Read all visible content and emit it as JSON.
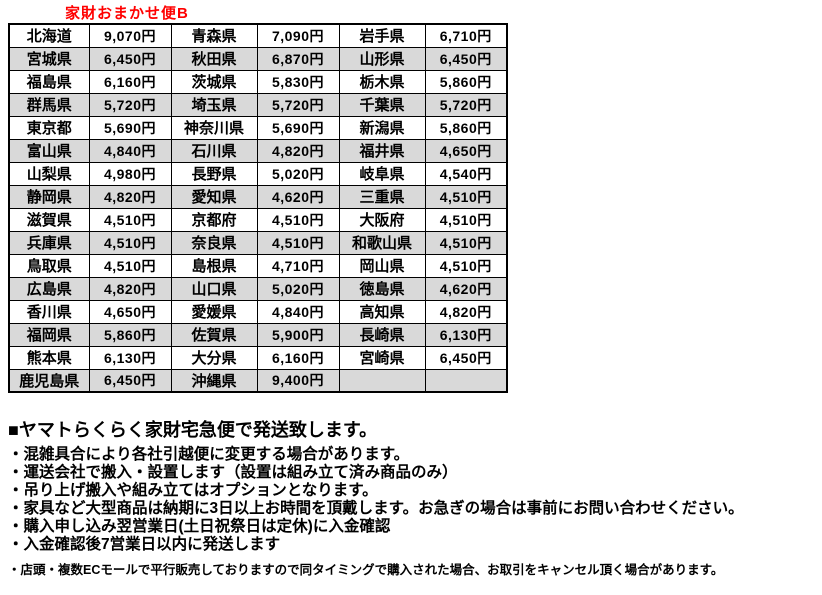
{
  "title": "家財おまかせ便B",
  "colors": {
    "title_red": "#ff0000",
    "row_alt_gray": "#d9d9d9",
    "border_black": "#000000"
  },
  "table": {
    "rows": [
      [
        {
          "pref": "北海道",
          "price": "9,070円"
        },
        {
          "pref": "青森県",
          "price": "7,090円"
        },
        {
          "pref": "岩手県",
          "price": "6,710円"
        }
      ],
      [
        {
          "pref": "宮城県",
          "price": "6,450円"
        },
        {
          "pref": "秋田県",
          "price": "6,870円"
        },
        {
          "pref": "山形県",
          "price": "6,450円"
        }
      ],
      [
        {
          "pref": "福島県",
          "price": "6,160円"
        },
        {
          "pref": "茨城県",
          "price": "5,830円"
        },
        {
          "pref": "栃木県",
          "price": "5,860円"
        }
      ],
      [
        {
          "pref": "群馬県",
          "price": "5,720円"
        },
        {
          "pref": "埼玉県",
          "price": "5,720円"
        },
        {
          "pref": "千葉県",
          "price": "5,720円"
        }
      ],
      [
        {
          "pref": "東京都",
          "price": "5,690円"
        },
        {
          "pref": "神奈川県",
          "price": "5,690円"
        },
        {
          "pref": "新潟県",
          "price": "5,860円"
        }
      ],
      [
        {
          "pref": "富山県",
          "price": "4,840円"
        },
        {
          "pref": "石川県",
          "price": "4,820円"
        },
        {
          "pref": "福井県",
          "price": "4,650円"
        }
      ],
      [
        {
          "pref": "山梨県",
          "price": "4,980円"
        },
        {
          "pref": "長野県",
          "price": "5,020円"
        },
        {
          "pref": "岐阜県",
          "price": "4,540円"
        }
      ],
      [
        {
          "pref": "静岡県",
          "price": "4,820円"
        },
        {
          "pref": "愛知県",
          "price": "4,620円"
        },
        {
          "pref": "三重県",
          "price": "4,510円"
        }
      ],
      [
        {
          "pref": "滋賀県",
          "price": "4,510円"
        },
        {
          "pref": "京都府",
          "price": "4,510円"
        },
        {
          "pref": "大阪府",
          "price": "4,510円"
        }
      ],
      [
        {
          "pref": "兵庫県",
          "price": "4,510円"
        },
        {
          "pref": "奈良県",
          "price": "4,510円"
        },
        {
          "pref": "和歌山県",
          "price": "4,510円"
        }
      ],
      [
        {
          "pref": "鳥取県",
          "price": "4,510円"
        },
        {
          "pref": "島根県",
          "price": "4,710円"
        },
        {
          "pref": "岡山県",
          "price": "4,510円"
        }
      ],
      [
        {
          "pref": "広島県",
          "price": "4,820円"
        },
        {
          "pref": "山口県",
          "price": "5,020円"
        },
        {
          "pref": "徳島県",
          "price": "4,620円"
        }
      ],
      [
        {
          "pref": "香川県",
          "price": "4,650円"
        },
        {
          "pref": "愛媛県",
          "price": "4,840円"
        },
        {
          "pref": "高知県",
          "price": "4,820円"
        }
      ],
      [
        {
          "pref": "福岡県",
          "price": "5,860円"
        },
        {
          "pref": "佐賀県",
          "price": "5,900円"
        },
        {
          "pref": "長崎県",
          "price": "6,130円"
        }
      ],
      [
        {
          "pref": "熊本県",
          "price": "6,130円"
        },
        {
          "pref": "大分県",
          "price": "6,160円"
        },
        {
          "pref": "宮崎県",
          "price": "6,450円"
        }
      ],
      [
        {
          "pref": "鹿児島県",
          "price": "6,450円"
        },
        {
          "pref": "沖縄県",
          "price": "9,400円"
        },
        {
          "pref": "",
          "price": ""
        }
      ]
    ]
  },
  "notes": {
    "heading": "■ヤマトらくらく家財宅急便で発送致します。",
    "bullets": [
      "・混雑具合により各社引越便に変更する場合があります。",
      "・運送会社で搬入・設置します（設置は組み立て済み商品のみ）",
      "・吊り上げ搬入や組み立てはオプションとなります。",
      "・家具など大型商品は納期に3日以上お時間を頂戴します。お急ぎの場合は事前にお問い合わせください。",
      "・購入申し込み翌営業日(土日祝祭日は定休)に入金確認",
      "・入金確認後7営業日以内に発送します"
    ],
    "footnote": "・店頭・複数ECモールで平行販売しておりますので同タイミングで購入された場合、お取引をキャンセル頂く場合があります。"
  }
}
